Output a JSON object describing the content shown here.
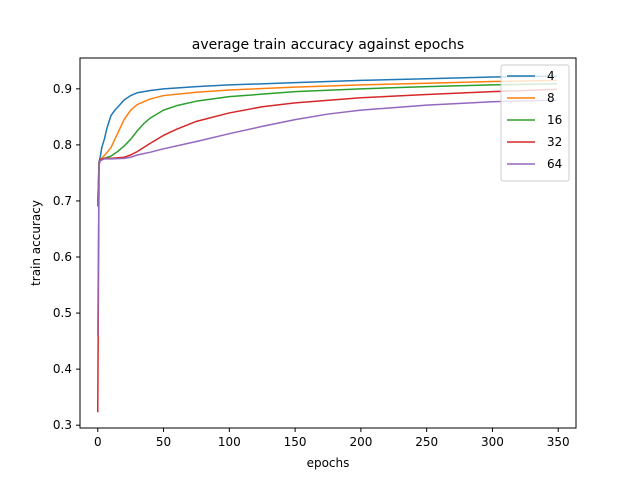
{
  "chart_data": {
    "type": "line",
    "title": "average train accuracy against epochs",
    "xlabel": "epochs",
    "ylabel": "train accuracy",
    "xlim": [
      -13.5,
      363.5
    ],
    "ylim": [
      0.295,
      0.955
    ],
    "xticks": [
      0,
      50,
      100,
      150,
      200,
      250,
      300,
      350
    ],
    "yticks": [
      0.3,
      0.4,
      0.5,
      0.6,
      0.7,
      0.8,
      0.9
    ],
    "grid": false,
    "legend_position": "upper right",
    "series": [
      {
        "name": "4",
        "color": "#1f77b4",
        "x": [
          0,
          1,
          2,
          3,
          5,
          7,
          10,
          13,
          15,
          20,
          25,
          30,
          40,
          50,
          75,
          100,
          150,
          200,
          250,
          300,
          349
        ],
        "y": [
          0.695,
          0.77,
          0.78,
          0.795,
          0.81,
          0.83,
          0.852,
          0.862,
          0.867,
          0.88,
          0.888,
          0.893,
          0.897,
          0.9,
          0.904,
          0.907,
          0.911,
          0.915,
          0.918,
          0.921,
          0.923
        ]
      },
      {
        "name": "8",
        "color": "#ff7f0e",
        "x": [
          0,
          1,
          2,
          5,
          10,
          15,
          20,
          25,
          30,
          40,
          50,
          75,
          100,
          150,
          200,
          250,
          300,
          349
        ],
        "y": [
          0.695,
          0.768,
          0.774,
          0.781,
          0.795,
          0.82,
          0.845,
          0.862,
          0.872,
          0.882,
          0.888,
          0.894,
          0.898,
          0.903,
          0.907,
          0.91,
          0.913,
          0.915
        ]
      },
      {
        "name": "16",
        "color": "#2ca02c",
        "x": [
          0,
          1,
          2,
          5,
          10,
          15,
          20,
          25,
          30,
          35,
          40,
          50,
          60,
          75,
          100,
          150,
          200,
          250,
          300,
          349
        ],
        "y": [
          0.69,
          0.768,
          0.773,
          0.776,
          0.78,
          0.788,
          0.798,
          0.81,
          0.825,
          0.838,
          0.848,
          0.862,
          0.87,
          0.878,
          0.886,
          0.895,
          0.9,
          0.904,
          0.907,
          0.909
        ]
      },
      {
        "name": "32",
        "color": "#d62728",
        "x": [
          0,
          1,
          2,
          5,
          10,
          20,
          25,
          30,
          40,
          50,
          60,
          75,
          100,
          125,
          150,
          200,
          250,
          300,
          349
        ],
        "y": [
          0.323,
          0.768,
          0.774,
          0.776,
          0.776,
          0.778,
          0.782,
          0.788,
          0.803,
          0.817,
          0.828,
          0.842,
          0.857,
          0.868,
          0.875,
          0.884,
          0.89,
          0.895,
          0.899
        ]
      },
      {
        "name": "64",
        "color": "#9467bd",
        "x": [
          0,
          1,
          2,
          5,
          10,
          20,
          25,
          30,
          40,
          50,
          75,
          100,
          125,
          150,
          175,
          200,
          250,
          300,
          349
        ],
        "y": [
          0.46,
          0.765,
          0.772,
          0.775,
          0.775,
          0.776,
          0.778,
          0.782,
          0.787,
          0.793,
          0.806,
          0.82,
          0.833,
          0.845,
          0.855,
          0.862,
          0.871,
          0.877,
          0.88
        ]
      }
    ]
  }
}
